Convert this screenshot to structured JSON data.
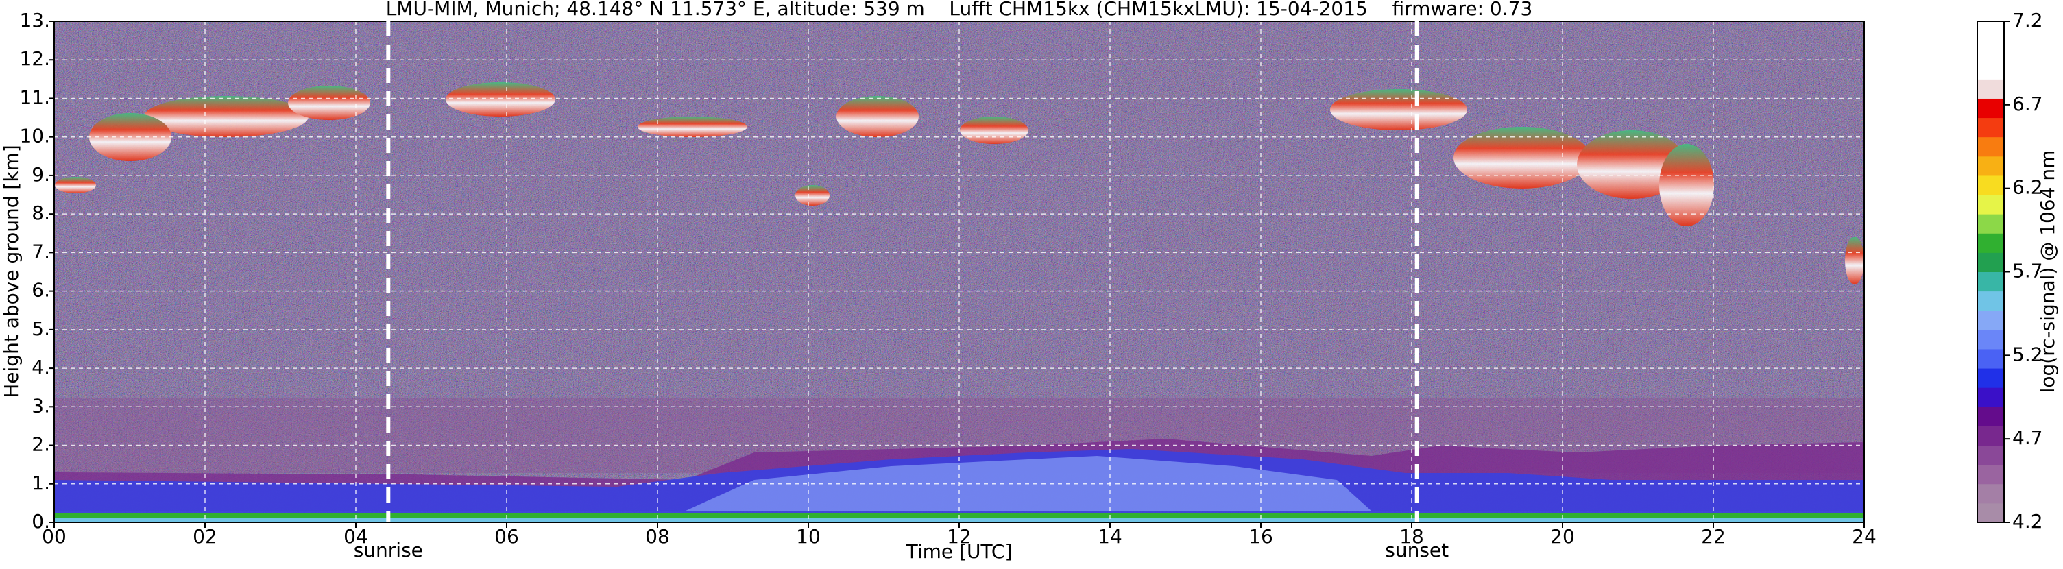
{
  "chart_data": {
    "type": "heatmap",
    "title": "LMU-MIM, Munich; 48.148° N 11.573° E, altitude: 539 m    Lufft CHM15kx (CHM15kxLMU): 15-04-2015    firmware: 0.73",
    "x_label": "Time [UTC]",
    "y_label": "Height above ground [km]",
    "xlim": [
      0,
      24
    ],
    "xticks": [
      {
        "value": 0,
        "label": "00"
      },
      {
        "value": 2,
        "label": "02"
      },
      {
        "value": 4,
        "label": "04"
      },
      {
        "value": 6,
        "label": "06"
      },
      {
        "value": 8,
        "label": "08"
      },
      10,
      12,
      14,
      16,
      18,
      20,
      22,
      24
    ],
    "ylim": [
      0,
      13
    ],
    "yticks": [
      {
        "value": 0,
        "label": "0."
      },
      {
        "value": 1,
        "label": "1."
      },
      {
        "value": 2,
        "label": "2."
      },
      {
        "value": 3,
        "label": "3."
      },
      {
        "value": 4,
        "label": "4."
      },
      {
        "value": 5,
        "label": "5."
      },
      {
        "value": 6,
        "label": "6."
      },
      {
        "value": 7,
        "label": "7."
      },
      {
        "value": 8,
        "label": "8."
      },
      {
        "value": 9,
        "label": "9."
      },
      {
        "value": 10,
        "label": "10."
      },
      {
        "value": 11,
        "label": "11."
      },
      {
        "value": 12,
        "label": "12."
      },
      {
        "value": 13,
        "label": "13."
      }
    ],
    "grid": true,
    "annotations": [
      {
        "text": "sunrise",
        "x": 4.43
      },
      {
        "text": "sunset",
        "x": 18.07
      }
    ],
    "colorbar": {
      "label": "log(rc-signal) @ 1064 nm",
      "clim": [
        4.2,
        7.2
      ],
      "ticks": [
        4.2,
        4.7,
        5.2,
        5.7,
        6.2,
        6.7,
        7.2
      ],
      "colors": [
        "#a88ca8",
        "#a47fa6",
        "#9a64a0",
        "#8a4898",
        "#78288e",
        "#640c8c",
        "#3a10c8",
        "#2030e8",
        "#4a62f4",
        "#6a86f8",
        "#86a8f6",
        "#70c4e6",
        "#38b6a6",
        "#22a050",
        "#30b030",
        "#8cd848",
        "#e6f448",
        "#f8dc20",
        "#f8b014",
        "#f87c10",
        "#f43c10",
        "#e80000",
        "#f0dcdc",
        "#ffffff",
        "#ffffff",
        "#ffffff"
      ]
    }
  }
}
